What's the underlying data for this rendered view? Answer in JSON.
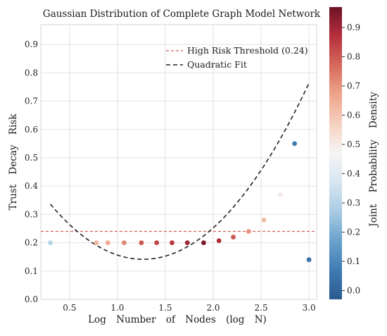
{
  "chart_data": {
    "type": "scatter",
    "title": "Gaussian Distribution of Complete Graph Model Network",
    "xlabel": "Log Number of Nodes (log N)",
    "ylabel": "Trust Decay Risk",
    "xlim": [
      0.2,
      3.08
    ],
    "ylim": [
      0.0,
      0.97
    ],
    "x_ticks": [
      "0.5",
      "1.0",
      "1.5",
      "2.0",
      "2.5",
      "3.0"
    ],
    "y_ticks": [
      "0.0",
      "0.1",
      "0.2",
      "0.3",
      "0.4",
      "0.5",
      "0.6",
      "0.7",
      "0.8",
      "0.9"
    ],
    "grid": true,
    "legend_position": "top-right",
    "threshold": {
      "label": "High Risk Threshold (0.24)",
      "value": 0.24,
      "color": "#d0605a",
      "style": "dashed"
    },
    "fit": {
      "label": "Quadratic Fit",
      "color": "#222222",
      "style": "dashed",
      "x_range": [
        0.3,
        3.0
      ],
      "coefficients": [
        0.4755,
        -0.5265,
        0.2075
      ]
    },
    "points": [
      {
        "x": 0.3,
        "y": 0.2,
        "density": 0.3
      },
      {
        "x": 0.78,
        "y": 0.2,
        "density": 0.63
      },
      {
        "x": 0.9,
        "y": 0.2,
        "density": 0.66
      },
      {
        "x": 1.07,
        "y": 0.2,
        "density": 0.72
      },
      {
        "x": 1.25,
        "y": 0.2,
        "density": 0.8
      },
      {
        "x": 1.41,
        "y": 0.2,
        "density": 0.83
      },
      {
        "x": 1.57,
        "y": 0.2,
        "density": 0.86
      },
      {
        "x": 1.73,
        "y": 0.2,
        "density": 0.9
      },
      {
        "x": 1.9,
        "y": 0.2,
        "density": 0.95
      },
      {
        "x": 2.06,
        "y": 0.207,
        "density": 0.88
      },
      {
        "x": 2.21,
        "y": 0.22,
        "density": 0.8
      },
      {
        "x": 2.37,
        "y": 0.24,
        "density": 0.7
      },
      {
        "x": 2.53,
        "y": 0.28,
        "density": 0.62
      },
      {
        "x": 2.7,
        "y": 0.37,
        "density": 0.5
      },
      {
        "x": 2.85,
        "y": 0.55,
        "density": 0.07
      },
      {
        "x": 3.0,
        "y": 0.14,
        "density": 0.04
      }
    ],
    "colorbar": {
      "label": "Joint Probability Density",
      "range": [
        -0.03,
        0.97
      ],
      "ticks": [
        "0.0",
        "0.1",
        "0.2",
        "0.3",
        "0.4",
        "0.5",
        "0.6",
        "0.7",
        "0.8",
        "0.9"
      ],
      "colormap": [
        "#2b5b8f",
        "#3f7bb4",
        "#6aa2cc",
        "#a8cbe3",
        "#d7e6f1",
        "#f5f5f5",
        "#f6d1c0",
        "#eea58c",
        "#d66a5b",
        "#b62f3d",
        "#6e1226"
      ]
    }
  }
}
